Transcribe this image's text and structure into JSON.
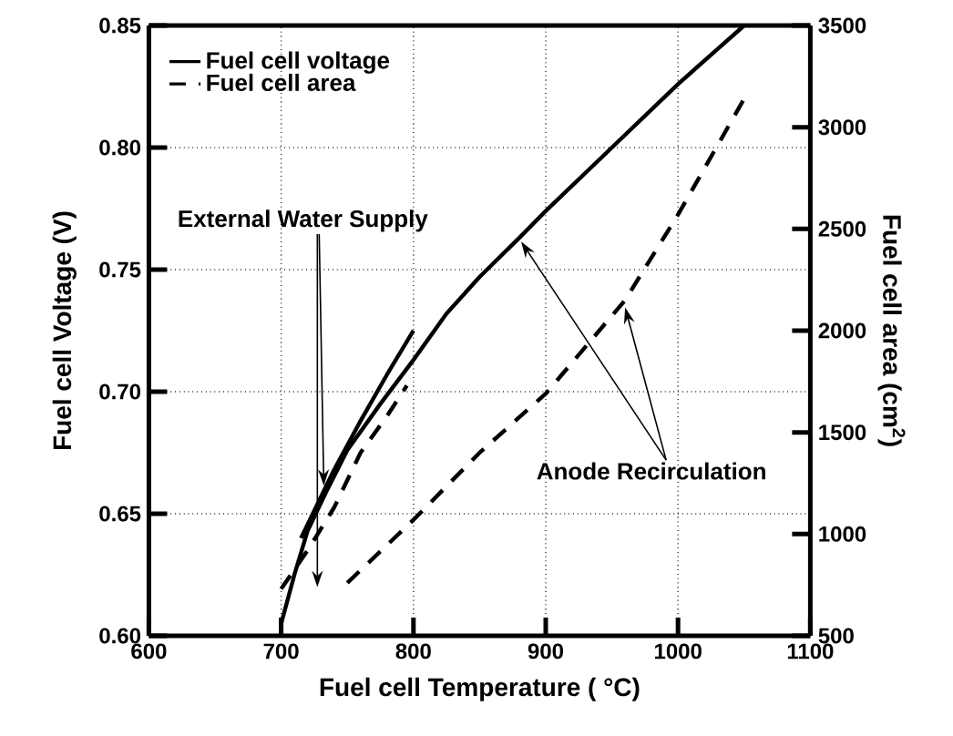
{
  "chart_data": {
    "type": "line",
    "xlabel": "Fuel cell Temperature ( °C)",
    "ylabel": "Fuel cell Voltage (V)",
    "y2label": "Fuel cell area (cm$^{2}$)",
    "xlim": [
      600,
      1100
    ],
    "xticks": [
      600,
      700,
      800,
      900,
      1000,
      1100
    ],
    "ylim": [
      0.6,
      0.85
    ],
    "yticks": [
      {
        "value": 0.6,
        "label": "0.60"
      },
      {
        "value": 0.65,
        "label": "0.65"
      },
      {
        "value": 0.7,
        "label": "0.70"
      },
      {
        "value": 0.75,
        "label": "0.75"
      },
      {
        "value": 0.8,
        "label": "0.80"
      },
      {
        "value": 0.85,
        "label": "0.85"
      }
    ],
    "y2lim": [
      500,
      3500
    ],
    "y2ticks": [
      500,
      1000,
      1500,
      2000,
      2500,
      3000,
      3500
    ],
    "grid": true,
    "legend": "top left",
    "marker": "none",
    "annotations": [
      {
        "text": "External Water Supply",
        "x": 735,
        "y": 0.66
      },
      {
        "text": "Anode Recirculation",
        "x": 880,
        "y": 0.763
      }
    ],
    "series": [
      {
        "name": "Fuel cell voltage",
        "color": "#000000",
        "line_style": "solid",
        "x": [
          700,
          710,
          720,
          735,
          750,
          775,
          800,
          825,
          850,
          880,
          900,
          950,
          1000,
          1025,
          1050
        ],
        "values": [
          0.605,
          0.625,
          0.643,
          0.66,
          0.676,
          0.695,
          0.713,
          0.732,
          0.747,
          0.763,
          0.774,
          0.8,
          0.826,
          0.838,
          0.85
        ]
      },
      {
        "color": "#000000",
        "line_style": "solid",
        "x": [
          715,
          740,
          760,
          780,
          800
        ],
        "values": [
          0.64,
          0.668,
          0.688,
          0.707,
          0.725
        ]
      },
      {
        "name": "Fuel cell area",
        "color": "#000000",
        "line_style": "dashed",
        "axis": "y2",
        "x": [
          700,
          720,
          740,
          760,
          780,
          795
        ],
        "values": [
          730,
          920,
          1130,
          1400,
          1580,
          1730
        ]
      },
      {
        "color": "#000000",
        "line_style": "dashed",
        "axis": "y2",
        "x": [
          750,
          800,
          850,
          900,
          960,
          1000,
          1050
        ],
        "values": [
          760,
          1070,
          1400,
          1690,
          2150,
          2570,
          3140
        ]
      }
    ]
  }
}
